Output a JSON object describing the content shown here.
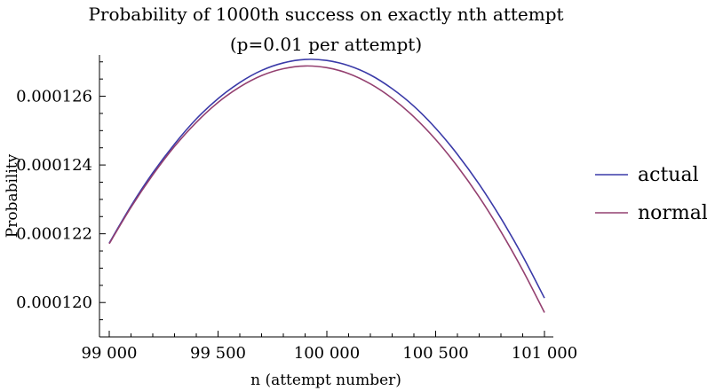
{
  "chart_data": {
    "type": "line",
    "title": "Probability of 1000th success on exactly nth attempt",
    "subtitle": "(p=0.01 per attempt)",
    "xlabel": "n (attempt number)",
    "ylabel": "Probability",
    "xlim": [
      99000,
      101000
    ],
    "ylim": [
      0.000119,
      0.0001272
    ],
    "x_ticks": [
      99000,
      99500,
      100000,
      100500,
      101000
    ],
    "x_tick_labels": [
      "99 000",
      "99 500",
      "100 000",
      "100 500",
      "101 000"
    ],
    "y_ticks": [
      0.00012,
      0.000122,
      0.000124,
      0.000126
    ],
    "y_tick_labels": [
      "0.000120",
      "0.000122",
      "0.000124",
      "0.000126"
    ],
    "grid": false,
    "legend_position": "right",
    "series": [
      {
        "name": "actual",
        "color": "#3a3aa8",
        "x": [
          99000,
          99100,
          99200,
          99300,
          99400,
          99500,
          99600,
          99700,
          99800,
          99900,
          100000,
          100100,
          100200,
          100300,
          100400,
          100500,
          100600,
          100700,
          100800,
          100900,
          101000
        ],
        "y": [
          0.00012173,
          0.00012281,
          0.00012377,
          0.00012461,
          0.00012534,
          0.00012593,
          0.0001264,
          0.00012675,
          0.00012697,
          0.00012707,
          0.00012704,
          0.00012689,
          0.00012662,
          0.00012622,
          0.00012571,
          0.00012507,
          0.00012431,
          0.00012344,
          0.00012245,
          0.00012135,
          0.00012013
        ]
      },
      {
        "name": "normal",
        "color": "#944070",
        "x": [
          99000,
          99100,
          99200,
          99300,
          99400,
          99500,
          99600,
          99700,
          99800,
          99900,
          100000,
          100100,
          100200,
          100300,
          100400,
          100500,
          100600,
          100700,
          100800,
          100900,
          101000
        ],
        "y": [
          0.00012171,
          0.00012277,
          0.00012371,
          0.00012454,
          0.00012524,
          0.00012582,
          0.00012627,
          0.0001266,
          0.0001268,
          0.00012688,
          0.00012683,
          0.00012666,
          0.00012636,
          0.00012594,
          0.0001254,
          0.00012474,
          0.00012396,
          0.00012307,
          0.00012206,
          0.00012094,
          0.00011971
        ]
      }
    ]
  }
}
